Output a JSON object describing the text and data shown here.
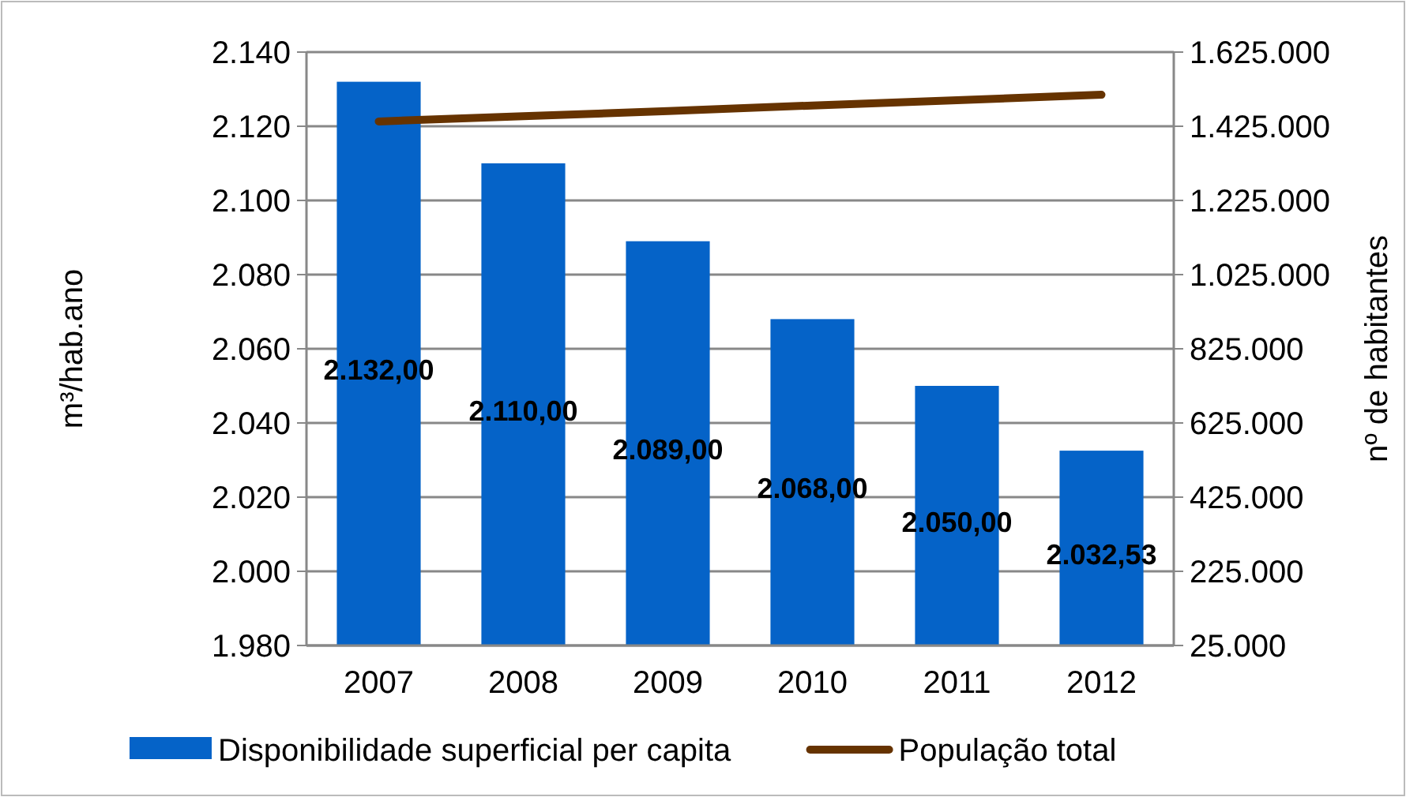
{
  "chart_data": {
    "type": "bar",
    "categories": [
      "2007",
      "2008",
      "2009",
      "2010",
      "2011",
      "2012"
    ],
    "ylabel": "m³/hab.ano",
    "y2label": "nº  de habitantes",
    "ylim": [
      1980,
      2140
    ],
    "yticks": [
      {
        "value": 1980,
        "label": "1.980"
      },
      {
        "value": 2000,
        "label": "2.000"
      },
      {
        "value": 2020,
        "label": "2.020"
      },
      {
        "value": 2040,
        "label": "2.040"
      },
      {
        "value": 2060,
        "label": "2.060"
      },
      {
        "value": 2080,
        "label": "2.080"
      },
      {
        "value": 2100,
        "label": "2.100"
      },
      {
        "value": 2120,
        "label": "2.120"
      },
      {
        "value": 2140,
        "label": "2.140"
      }
    ],
    "y2lim": [
      25000,
      1625000
    ],
    "y2ticks": [
      {
        "value": 25000,
        "label": "25.000"
      },
      {
        "value": 225000,
        "label": "225.000"
      },
      {
        "value": 425000,
        "label": "425.000"
      },
      {
        "value": 625000,
        "label": "625.000"
      },
      {
        "value": 825000,
        "label": "825.000"
      },
      {
        "value": 1025000,
        "label": "1.025.000"
      },
      {
        "value": 1225000,
        "label": "1.225.000"
      },
      {
        "value": 1425000,
        "label": "1.425.000"
      },
      {
        "value": 1625000,
        "label": "1.625.000"
      }
    ],
    "grid": "y",
    "legend": "bottom",
    "series": [
      {
        "name": "Disponibilidade superficial per capita",
        "color": "#0563c8",
        "values": [
          2132,
          2110,
          2089,
          2068,
          2050,
          2032.53
        ],
        "value_labels": [
          "2.132,00",
          "2.110,00",
          "2.089,00",
          "2.068,00",
          "2.050,00",
          "2.032,53"
        ]
      },
      {
        "name": "População total",
        "type": "line",
        "axis": "y2",
        "color": "#663300",
        "values": [
          1438000,
          1452000,
          1466000,
          1481000,
          1495000,
          1510000
        ]
      }
    ]
  }
}
